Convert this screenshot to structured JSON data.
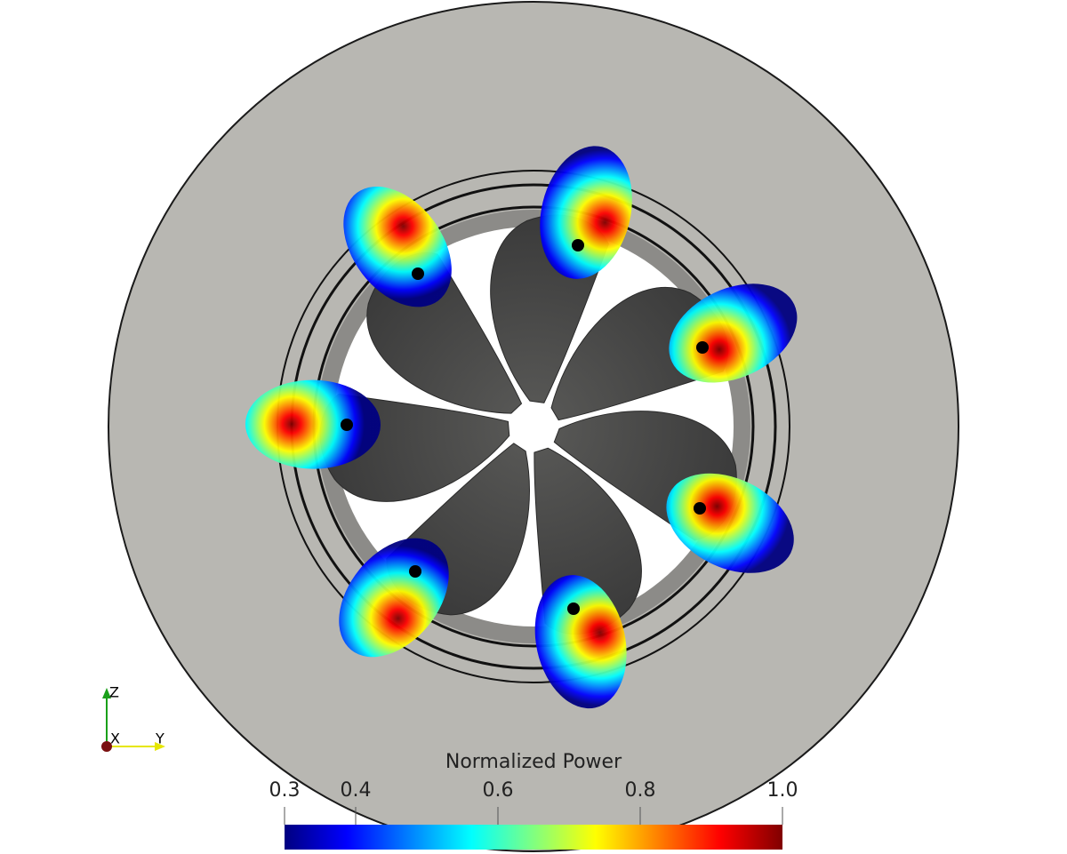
{
  "colorbar": {
    "title": "Normalized Power",
    "range": [
      0.3,
      1.0
    ],
    "ticks": [
      0.3,
      0.4,
      0.6,
      0.8,
      {
        "value": 1.0,
        "label": "1.0"
      }
    ],
    "colormap": [
      "#000080",
      "#0000ff",
      "#0080ff",
      "#00ffff",
      "#80ff80",
      "#ffff00",
      "#ff8000",
      "#ff0000",
      "#800000"
    ]
  },
  "axes_triad": {
    "z": "Z",
    "x": "X",
    "y": "Y"
  }
}
